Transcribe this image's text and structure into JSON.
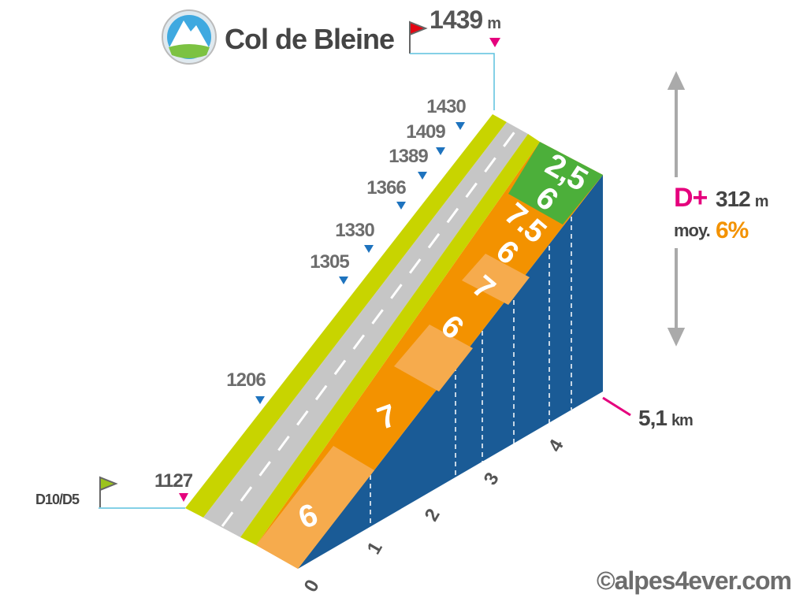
{
  "header": {
    "title": "Col de Bleine",
    "summit_altitude": "1439",
    "unit": "m"
  },
  "start": {
    "road": "D10/D5",
    "altitude": "1127"
  },
  "altitude_marks": [
    "1206",
    "1305",
    "1330",
    "1366",
    "1389",
    "1409",
    "1430"
  ],
  "gradients": [
    "6",
    "7",
    "6",
    "7",
    "6",
    "7.5",
    "6",
    "2,5"
  ],
  "km_marks": [
    "0",
    "1",
    "2",
    "3",
    "4"
  ],
  "distance": {
    "value": "5,1",
    "unit": "km"
  },
  "elevation_gain": {
    "label": "D+",
    "value": "312",
    "unit": "m"
  },
  "average": {
    "label": "moy.",
    "value": "6%"
  },
  "credit": "©alpes4ever.com"
}
